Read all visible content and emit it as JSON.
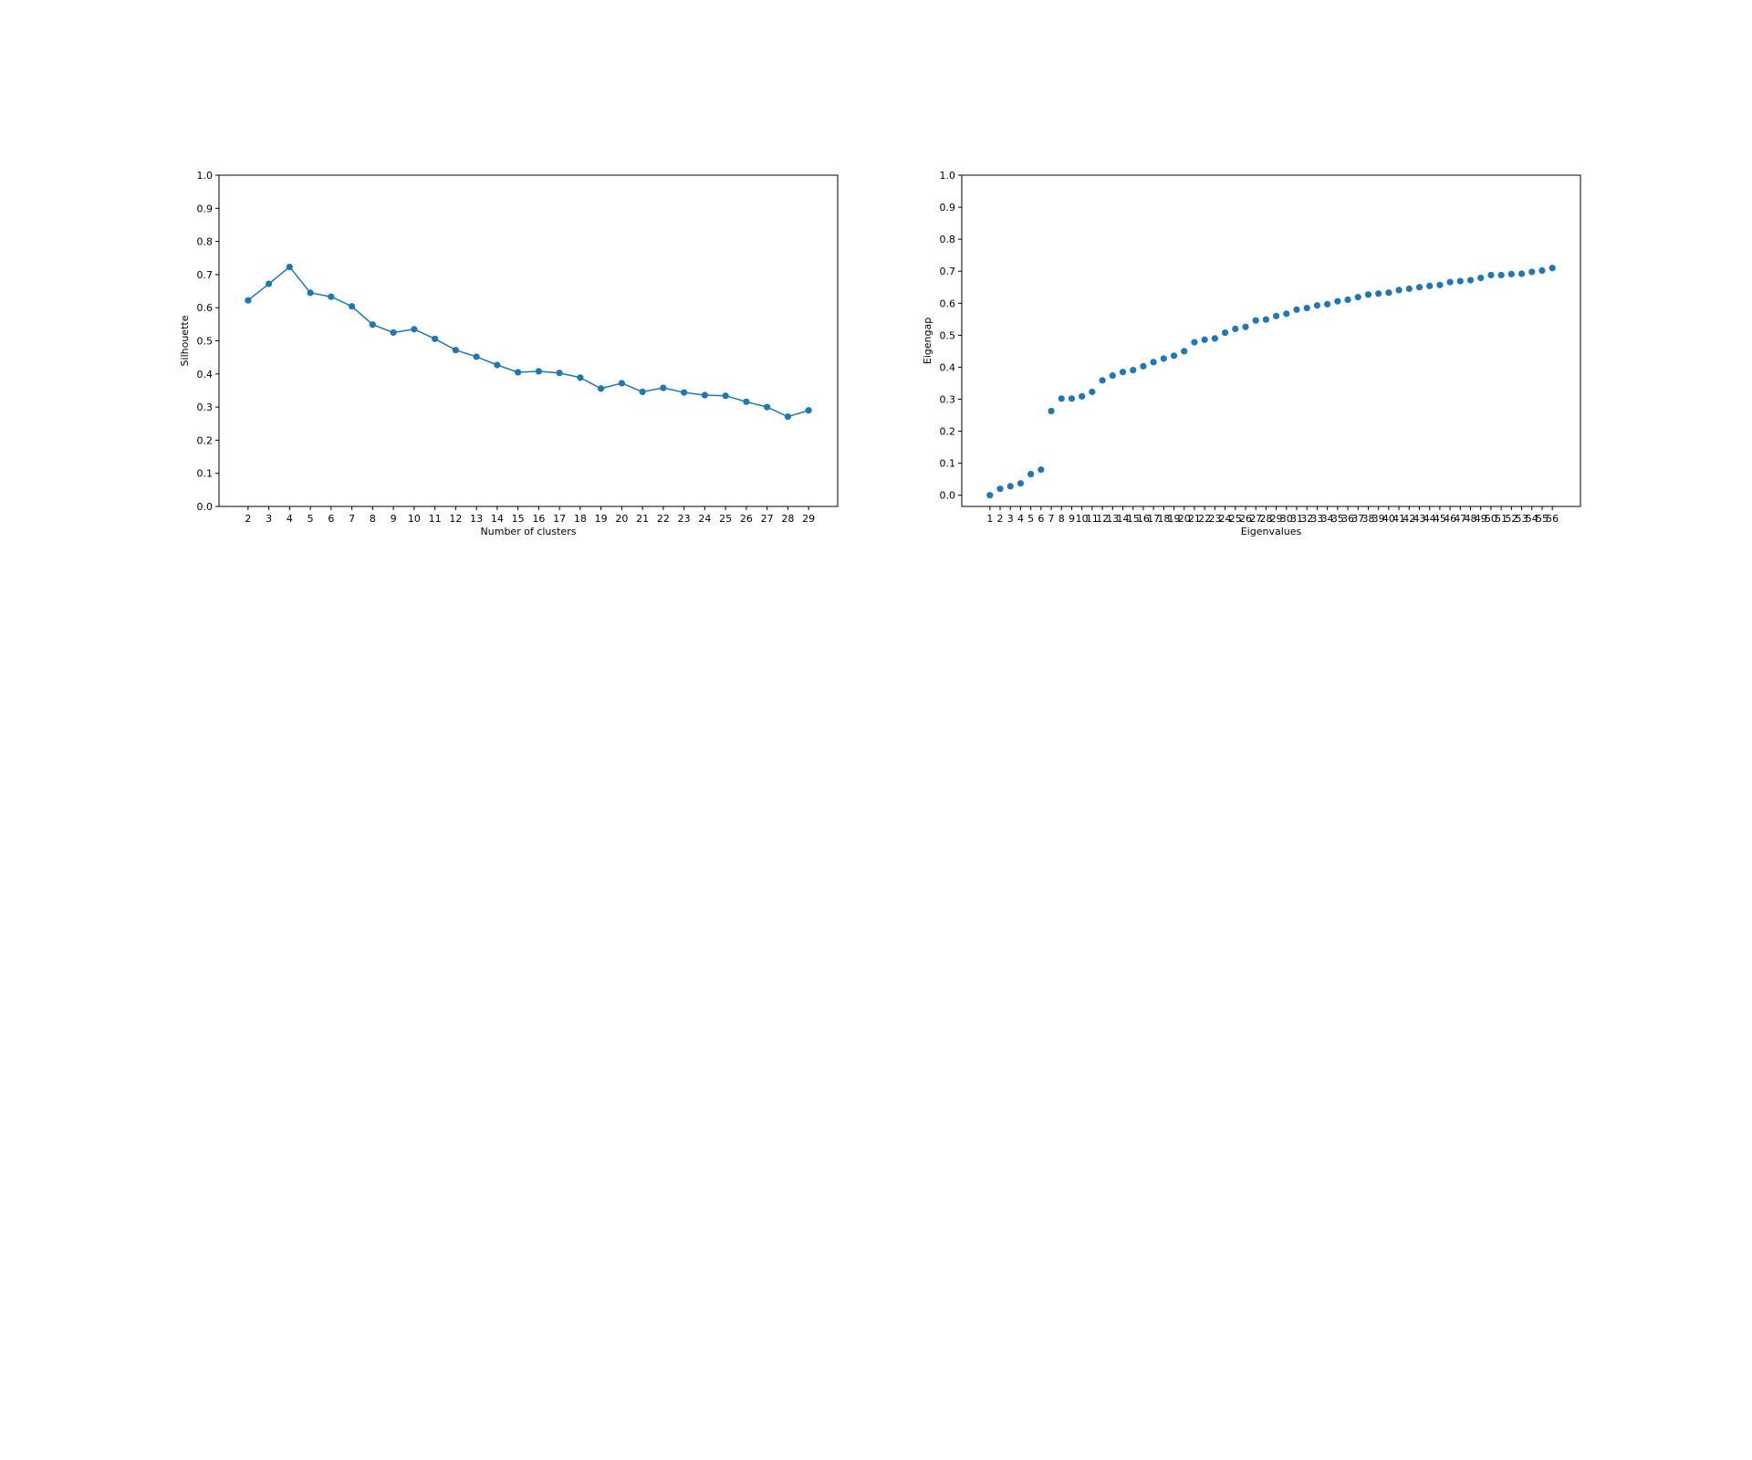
{
  "chart_data": [
    {
      "type": "line",
      "markers": true,
      "title": "",
      "xlabel": "Number of clusters",
      "ylabel": "Silhouette",
      "x": [
        2,
        3,
        4,
        5,
        6,
        7,
        8,
        9,
        10,
        11,
        12,
        13,
        14,
        15,
        16,
        17,
        18,
        19,
        20,
        21,
        22,
        23,
        24,
        25,
        26,
        27,
        28,
        29
      ],
      "y": [
        0.622,
        0.672,
        0.723,
        0.645,
        0.633,
        0.604,
        0.549,
        0.525,
        0.535,
        0.506,
        0.472,
        0.452,
        0.427,
        0.405,
        0.408,
        0.403,
        0.389,
        0.356,
        0.372,
        0.346,
        0.358,
        0.344,
        0.336,
        0.334,
        0.316,
        0.3,
        0.271,
        0.29
      ],
      "xticks": [
        2,
        3,
        4,
        5,
        6,
        7,
        8,
        9,
        10,
        11,
        12,
        13,
        14,
        15,
        16,
        17,
        18,
        19,
        20,
        21,
        22,
        23,
        24,
        25,
        26,
        27,
        28,
        29
      ],
      "xlim": [
        0.6,
        30.4
      ],
      "ylim": [
        0.0,
        1.0
      ],
      "yticks": [
        "0.0",
        "0.1",
        "0.2",
        "0.3",
        "0.4",
        "0.5",
        "0.6",
        "0.7",
        "0.8",
        "0.9",
        "1.0"
      ],
      "grid": false,
      "color": "#1f77b4"
    },
    {
      "type": "scatter",
      "title": "",
      "xlabel": "Eigenvalues",
      "ylabel": "Eigengap",
      "x": [
        1,
        2,
        3,
        4,
        5,
        6,
        7,
        8,
        9,
        10,
        11,
        12,
        13,
        14,
        15,
        16,
        17,
        18,
        19,
        20,
        21,
        22,
        23,
        24,
        25,
        26,
        27,
        28,
        29,
        30,
        31,
        32,
        33,
        34,
        35,
        36,
        37,
        38,
        39,
        40,
        41,
        42,
        43,
        44,
        45,
        46,
        47,
        48,
        49,
        50,
        51,
        52,
        53,
        54,
        55,
        56
      ],
      "y": [
        0.0,
        0.02,
        0.028,
        0.037,
        0.066,
        0.08,
        0.263,
        0.302,
        0.302,
        0.309,
        0.323,
        0.359,
        0.374,
        0.385,
        0.391,
        0.403,
        0.416,
        0.427,
        0.436,
        0.45,
        0.478,
        0.486,
        0.49,
        0.508,
        0.52,
        0.526,
        0.546,
        0.549,
        0.56,
        0.567,
        0.58,
        0.585,
        0.593,
        0.597,
        0.606,
        0.611,
        0.619,
        0.627,
        0.63,
        0.633,
        0.641,
        0.645,
        0.65,
        0.654,
        0.657,
        0.666,
        0.669,
        0.672,
        0.679,
        0.688,
        0.688,
        0.691,
        0.692,
        0.698,
        0.702,
        0.71
      ],
      "xticks": [
        1,
        2,
        3,
        4,
        5,
        6,
        7,
        8,
        9,
        10,
        11,
        12,
        13,
        14,
        15,
        16,
        17,
        18,
        19,
        20,
        21,
        22,
        23,
        24,
        25,
        26,
        27,
        28,
        29,
        30,
        31,
        32,
        33,
        34,
        35,
        36,
        37,
        38,
        39,
        40,
        41,
        42,
        43,
        44,
        45,
        46,
        47,
        48,
        49,
        50,
        51,
        52,
        53,
        54,
        55,
        56
      ],
      "xlim": [
        -1.75,
        58.75
      ],
      "ylim": [
        -0.035,
        1.0
      ],
      "yticks": [
        "0.0",
        "0.1",
        "0.2",
        "0.3",
        "0.4",
        "0.5",
        "0.6",
        "0.7",
        "0.8",
        "0.9",
        "1.0"
      ],
      "grid": false,
      "color": "#1f77b4"
    }
  ]
}
